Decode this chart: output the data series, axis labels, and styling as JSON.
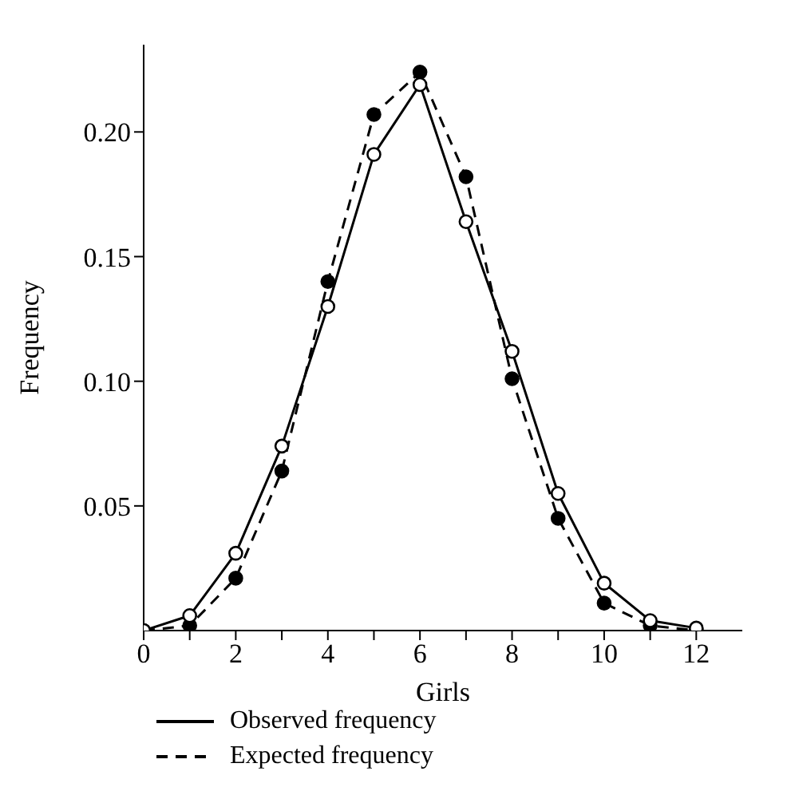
{
  "chart_data": {
    "type": "line",
    "xlabel": "Girls",
    "ylabel": "Frequency",
    "x": [
      0,
      1,
      2,
      3,
      4,
      5,
      6,
      7,
      8,
      9,
      10,
      11,
      12
    ],
    "series": [
      {
        "name": "Observed frequency",
        "color": "#000000",
        "line_style": "solid",
        "values": [
          0,
          0.006,
          0.031,
          0.074,
          0.13,
          0.191,
          0.219,
          0.164,
          0.112,
          0.055,
          0.019,
          0.004,
          0.001
        ]
      },
      {
        "name": "Expected frequency",
        "color": "#000000",
        "line_style": "dashed",
        "values": [
          0,
          0.002,
          0.021,
          0.064,
          0.14,
          0.207,
          0.224,
          0.182,
          0.101,
          0.045,
          0.011,
          0.002,
          0
        ]
      }
    ],
    "xlim": [
      0,
      13
    ],
    "xticks": [
      0,
      {
        "value": 1,
        "label": null
      },
      2,
      {
        "value": 3,
        "label": null
      },
      4,
      {
        "value": 5,
        "label": null
      },
      6,
      {
        "value": 7,
        "label": null
      },
      8,
      {
        "value": 9,
        "label": null
      },
      10,
      {
        "value": 11,
        "label": null
      },
      12
    ],
    "ylim": [
      0,
      0.235
    ],
    "yticks": [
      {
        "value": 0.05,
        "label": "0.05"
      },
      {
        "value": 0.1,
        "label": "0.10"
      },
      {
        "value": 0.15,
        "label": "0.15"
      },
      {
        "value": 0.2,
        "label": "0.20"
      }
    ],
    "marker": "circle",
    "legend": "bottom"
  }
}
